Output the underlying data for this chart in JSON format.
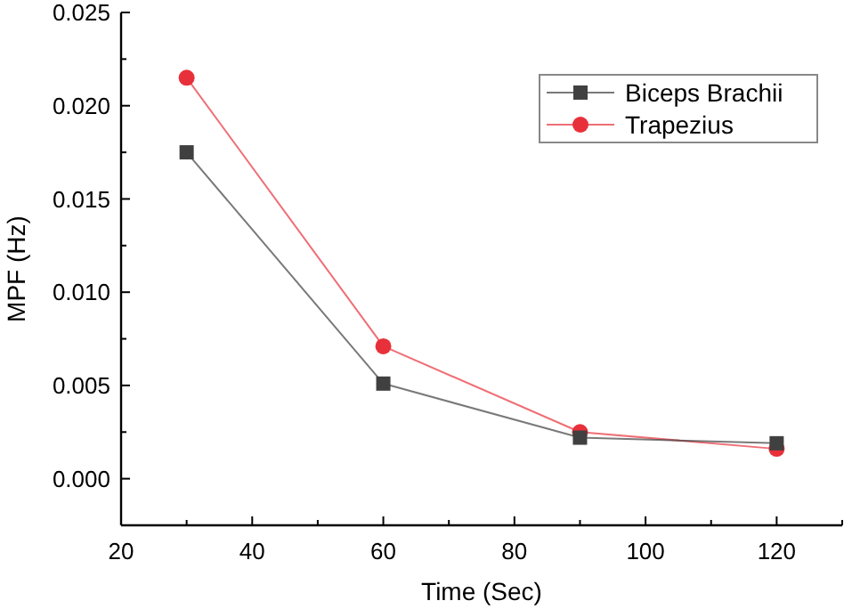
{
  "chart_data": {
    "type": "line",
    "xlabel": "Time (Sec)",
    "ylabel": "MPF (Hz)",
    "x": [
      30,
      60,
      90,
      120
    ],
    "series": [
      {
        "name": "Biceps Brachii",
        "color": "#404040",
        "marker": "square",
        "values": [
          0.0175,
          0.0051,
          0.0022,
          0.0019
        ]
      },
      {
        "name": "Trapezius",
        "color": "#e8303a",
        "marker": "circle",
        "values": [
          0.0215,
          0.0071,
          0.0025,
          0.0016
        ]
      }
    ],
    "xlim": [
      20,
      130
    ],
    "xticks": [
      20,
      {
        "value": 30,
        "label": null
      },
      40,
      {
        "value": 50,
        "label": null
      },
      60,
      {
        "value": 70,
        "label": null
      },
      80,
      {
        "value": 90,
        "label": null
      },
      100,
      {
        "value": 110,
        "label": null
      },
      120,
      {
        "value": 130,
        "label": null
      }
    ],
    "ylim": [
      -0.0025,
      0.025
    ],
    "yticks": [
      {
        "value": -0.0025,
        "label": null
      },
      "0.000",
      {
        "value": 0.0025,
        "label": null
      },
      0.005,
      {
        "value": 0.0075,
        "label": null
      },
      "0.010",
      {
        "value": 0.0125,
        "label": null
      },
      0.015,
      {
        "value": 0.0175,
        "label": null
      },
      "0.020",
      {
        "value": 0.0225,
        "label": null
      },
      0.025
    ],
    "grid": false,
    "legend": "top right",
    "line_style": "solid"
  }
}
